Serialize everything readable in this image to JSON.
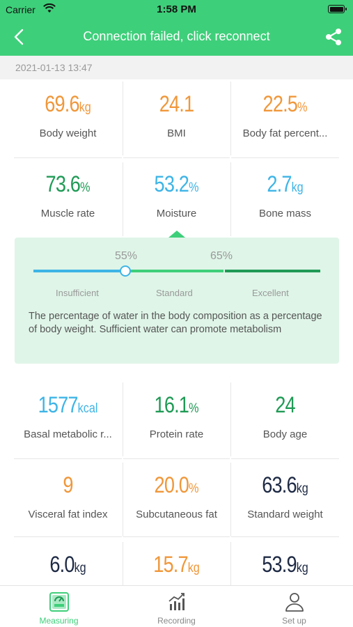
{
  "status": {
    "carrier": "Carrier",
    "time": "1:58 PM"
  },
  "header": {
    "title": "Connection failed, click reconnect"
  },
  "date": "2021-01-13 13:47",
  "colors": {
    "accent": "#3ecf7a",
    "orange": "#f0973a",
    "green": "#1f9a55",
    "blue": "#3eb4e6",
    "dark": "#1e2a44"
  },
  "metrics_top": [
    {
      "value": "69.6",
      "unit": "kg",
      "label": "Body weight",
      "color": "orange"
    },
    {
      "value": "24.1",
      "unit": "",
      "label": "BMI",
      "color": "orange"
    },
    {
      "value": "22.5",
      "unit": "%",
      "label": "Body fat percent...",
      "color": "orange"
    },
    {
      "value": "73.6",
      "unit": "%",
      "label": "Muscle rate",
      "color": "green"
    },
    {
      "value": "53.2",
      "unit": "%",
      "label": "Moisture",
      "color": "blue"
    },
    {
      "value": "2.7",
      "unit": "kg",
      "label": "Bone mass",
      "color": "blue"
    }
  ],
  "detail": {
    "threshold_low": "55%",
    "threshold_high": "65%",
    "level_low": "Insufficient",
    "level_mid": "Standard",
    "level_high": "Excellent",
    "description": "The percentage of water in the body composition as a percentage of body weight. Sufficient water can promote metabolism"
  },
  "metrics_bottom": [
    {
      "value": "1577",
      "unit": "kcal",
      "label": "Basal metabolic r...",
      "color": "blue"
    },
    {
      "value": "16.1",
      "unit": "%",
      "label": "Protein rate",
      "color": "green"
    },
    {
      "value": "24",
      "unit": "",
      "label": "Body age",
      "color": "green"
    },
    {
      "value": "9",
      "unit": "",
      "label": "Visceral fat index",
      "color": "orange"
    },
    {
      "value": "20.0",
      "unit": "%",
      "label": "Subcutaneous fat",
      "color": "orange"
    },
    {
      "value": "63.6",
      "unit": "kg",
      "label": "Standard weight",
      "color": "dark"
    },
    {
      "value": "6.0",
      "unit": "kg",
      "label": "",
      "color": "dark"
    },
    {
      "value": "15.7",
      "unit": "kg",
      "label": "",
      "color": "orange"
    },
    {
      "value": "53.9",
      "unit": "kg",
      "label": "",
      "color": "dark"
    }
  ],
  "tabs": [
    {
      "label": "Measuring",
      "icon": "scale-icon",
      "active": true
    },
    {
      "label": "Recording",
      "icon": "chart-icon",
      "active": false
    },
    {
      "label": "Set up",
      "icon": "user-icon",
      "active": false
    }
  ]
}
